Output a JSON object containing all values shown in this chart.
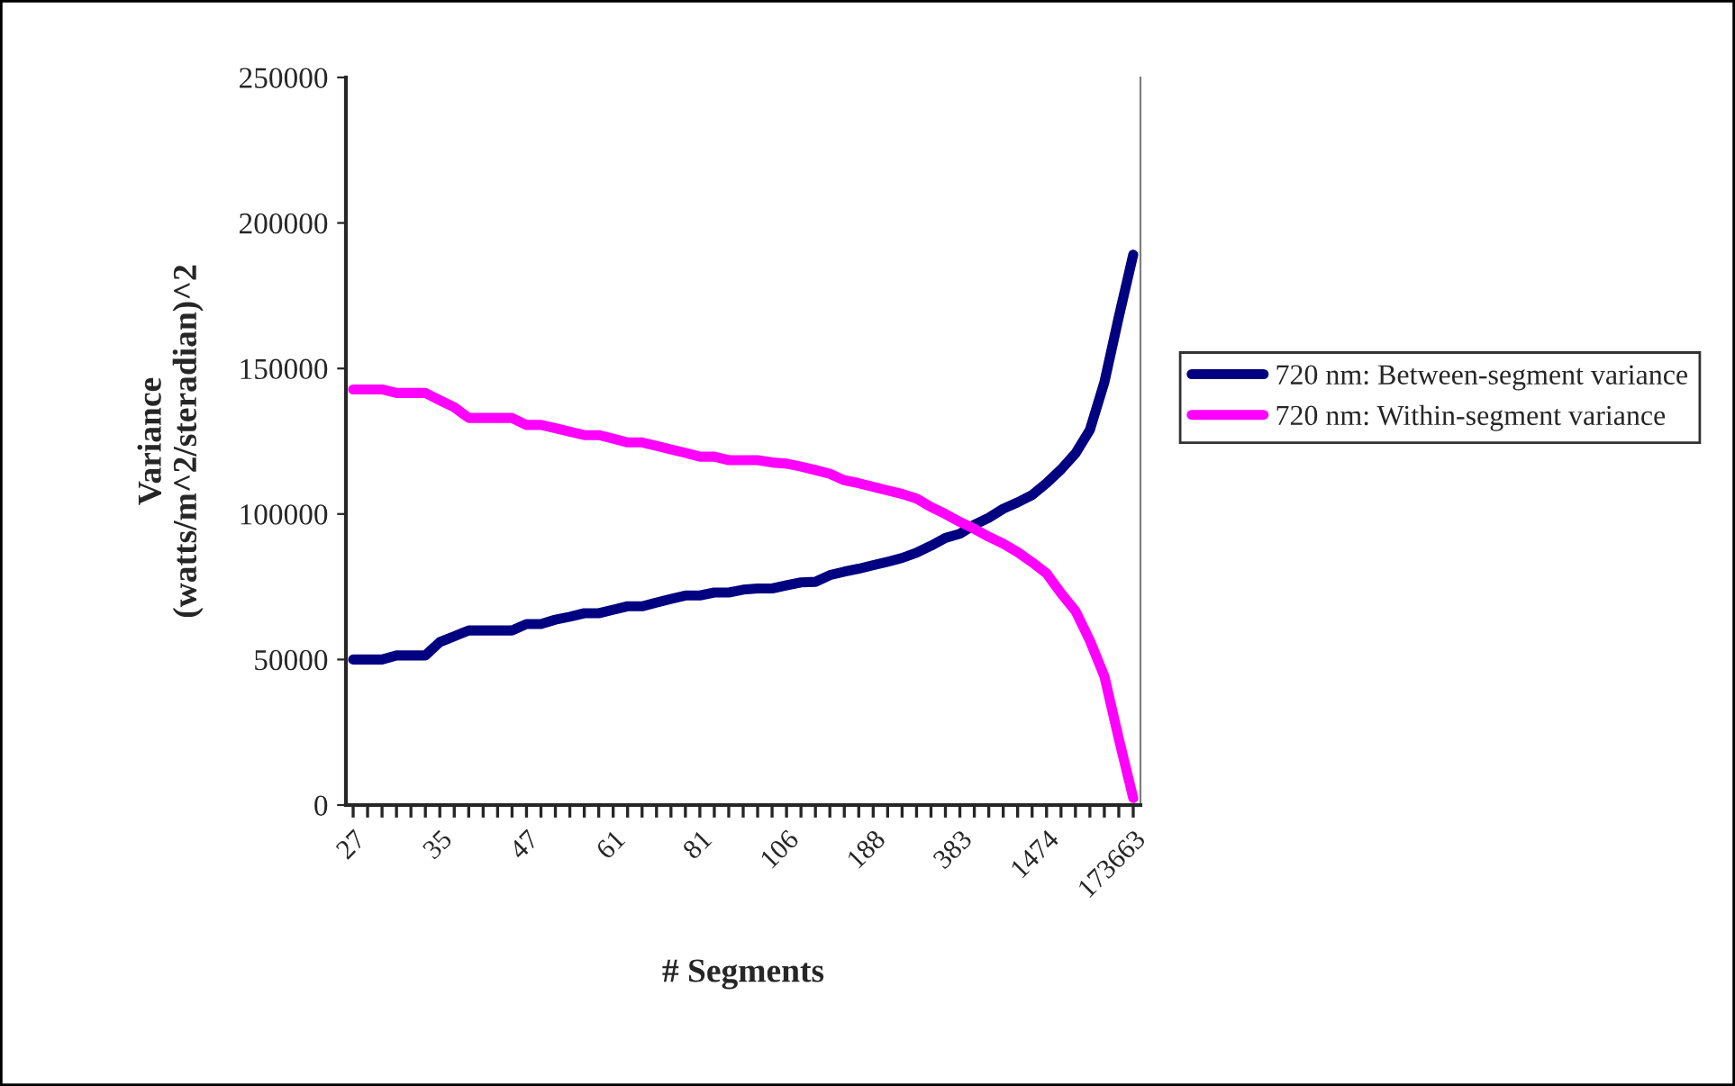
{
  "chart_data": {
    "type": "line",
    "xlabel": "# Segments",
    "ylabel": "Variance\n(watts/m^2/steradian)^2",
    "categories": [
      "27",
      null,
      null,
      null,
      null,
      null,
      "35",
      null,
      null,
      null,
      null,
      null,
      "47",
      null,
      null,
      null,
      null,
      null,
      "61",
      null,
      null,
      null,
      null,
      null,
      "81",
      null,
      null,
      null,
      null,
      null,
      "106",
      null,
      null,
      null,
      null,
      null,
      "188",
      null,
      null,
      null,
      null,
      null,
      "383",
      null,
      null,
      null,
      null,
      null,
      "1474",
      null,
      null,
      null,
      null,
      null,
      "173663"
    ],
    "series": [
      {
        "name": "720 nm: Between-segment variance",
        "color": "#000080",
        "values": [
          50000,
          50000,
          50000,
          51400,
          51400,
          51400,
          56000,
          58000,
          60000,
          60000,
          60000,
          60000,
          62200,
          62200,
          63700,
          64700,
          65900,
          65900,
          67100,
          68300,
          68300,
          69600,
          70800,
          72000,
          72000,
          73000,
          73000,
          74000,
          74400,
          74400,
          75500,
          76500,
          76700,
          79000,
          80200,
          81200,
          82400,
          83600,
          84900,
          86700,
          89100,
          91800,
          93200,
          96300,
          98700,
          101800,
          104000,
          106500,
          110600,
          115300,
          120800,
          128900,
          145200,
          167700,
          189100
        ]
      },
      {
        "name": "720 nm: Within-segment variance",
        "color": "#ff00ff",
        "values": [
          142800,
          142800,
          142800,
          141600,
          141600,
          141600,
          139100,
          136700,
          133000,
          133000,
          133000,
          133000,
          130600,
          130600,
          129500,
          128300,
          127100,
          127100,
          125900,
          124600,
          124600,
          123400,
          122200,
          121000,
          119700,
          119700,
          118500,
          118500,
          118500,
          117700,
          117300,
          116300,
          115100,
          113800,
          111600,
          110600,
          109300,
          108100,
          106900,
          105300,
          102400,
          100000,
          97300,
          94900,
          92200,
          89800,
          86900,
          83400,
          79600,
          72800,
          66700,
          56500,
          44300,
          22800,
          2400
        ]
      }
    ],
    "ylim": [
      0,
      250000
    ],
    "yticks": [
      0,
      50000,
      100000,
      150000,
      200000,
      250000
    ],
    "grid": false,
    "legend": "right",
    "marker": "none",
    "line_style": "solid"
  }
}
